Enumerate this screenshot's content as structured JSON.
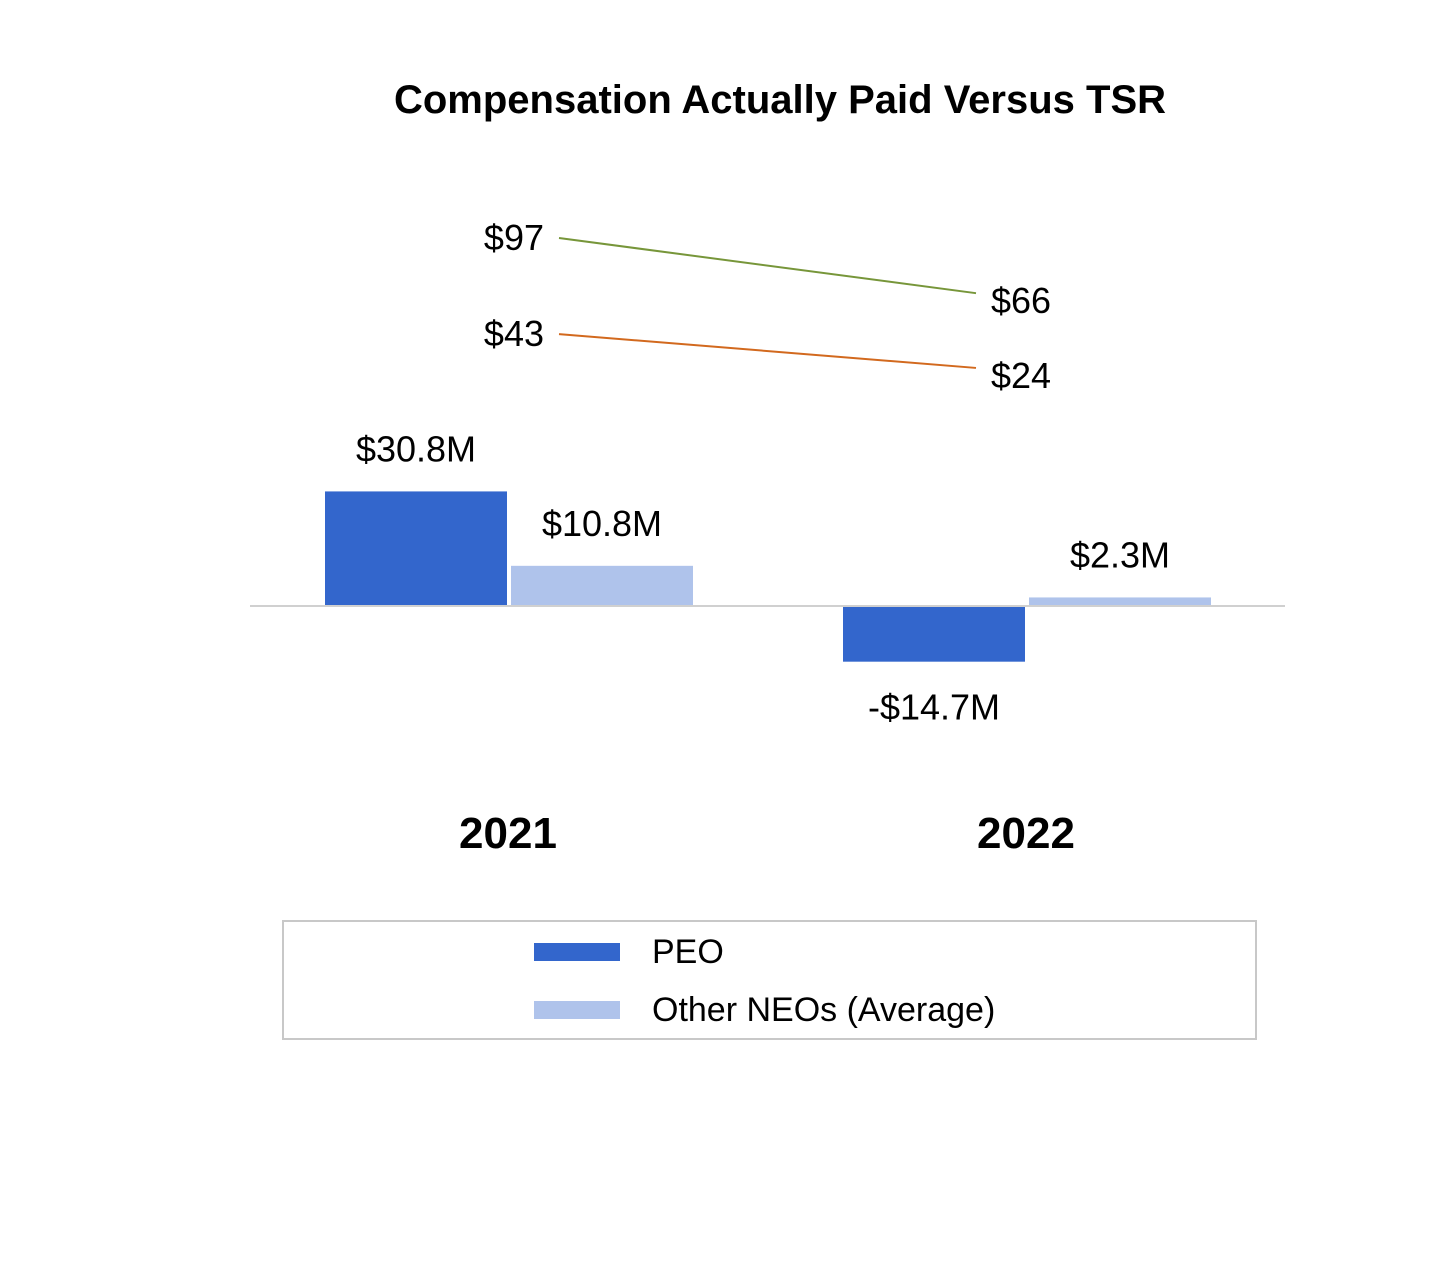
{
  "chart_data": {
    "type": "bar",
    "title": "Compensation Actually Paid Versus TSR",
    "categories": [
      "2021",
      "2022"
    ],
    "series": [
      {
        "name": "PEO",
        "values": [
          30.8,
          -14.7
        ],
        "labels": [
          "$30.8M",
          "-$14.7M"
        ],
        "color": "#3366cc"
      },
      {
        "name": "Other NEOs (Average)",
        "values": [
          10.8,
          2.3
        ],
        "labels": [
          "$10.8M",
          "$2.3M"
        ],
        "color": "#afc3eb"
      }
    ],
    "tsr_lines": [
      {
        "values": [
          97,
          66
        ],
        "labels": [
          "$97",
          "$66"
        ],
        "color": "#77963a"
      },
      {
        "values": [
          43,
          24
        ],
        "labels": [
          "$43",
          "$24"
        ],
        "color": "#d2691e"
      }
    ],
    "legend_position": "bottom",
    "grid": false
  }
}
